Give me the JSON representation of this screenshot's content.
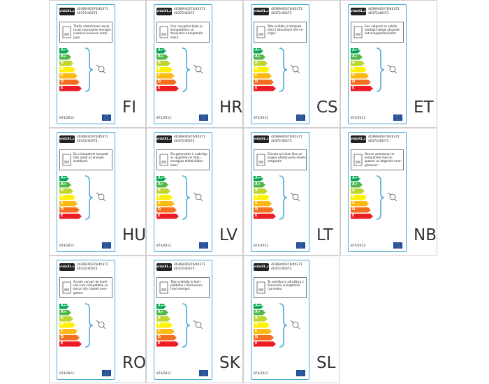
{
  "brand": "vidaXL.com",
  "codes": [
    "40369/40370/40371",
    "40372/40373"
  ],
  "regulation": "874/2012",
  "classes": [
    {
      "label": "A++",
      "color": "#00a651"
    },
    {
      "label": "A+",
      "color": "#50b848"
    },
    {
      "label": "A",
      "color": "#bed630"
    },
    {
      "label": "B",
      "color": "#fff200"
    },
    {
      "label": "C",
      "color": "#fdb913"
    },
    {
      "label": "D",
      "color": "#f37021"
    },
    {
      "label": "E",
      "color": "#ed1c24"
    }
  ],
  "labels": [
    {
      "lang": "FI",
      "text": "Tähän valaisimeen sovel-tuvat seuraavien energia-luokkien kuuluvia lamp-puja"
    },
    {
      "lang": "HR",
      "text": "Ovo rasvjetno tijelo je kompatibilno sa žaruljama energetskih klasa:"
    },
    {
      "lang": "CS",
      "text": "Toto svítidlo je kompati-bilní s žárovkami tříd en-ergie:"
    },
    {
      "lang": "ET",
      "text": "See valgusti on sobilik lambipirnidega järgmist-est energiaklassidest:"
    },
    {
      "lang": "HU",
      "text": "Ez a lámpatest kompati-bilis izzók az energia osztályok:"
    },
    {
      "lang": "LV",
      "text": "Šis gaismeklis ir saderīgs ar spuldzēm ar šādu enerģijas efektivitātes klasi:"
    },
    {
      "lang": "LT",
      "text": "Šviestuvui tinka šios en-ergijos efektyvumo klasės lemputės:"
    },
    {
      "lang": "NB",
      "text": "Denne armaturen er kompatibel med ly-spærer av følgende ener-giklasser:"
    },
    {
      "lang": "RO",
      "text": "Aceste corpuri de ilumi-nat sunt compatibile cu becuri din clasele ener-getice:"
    },
    {
      "lang": "SK",
      "text": "Toto svietidlo je kom-patibilné s žiarovkami tried energie:"
    },
    {
      "lang": "SL",
      "text": "Ta svetilka je združljiva z žarnicami energetskih raz-redov:"
    }
  ]
}
